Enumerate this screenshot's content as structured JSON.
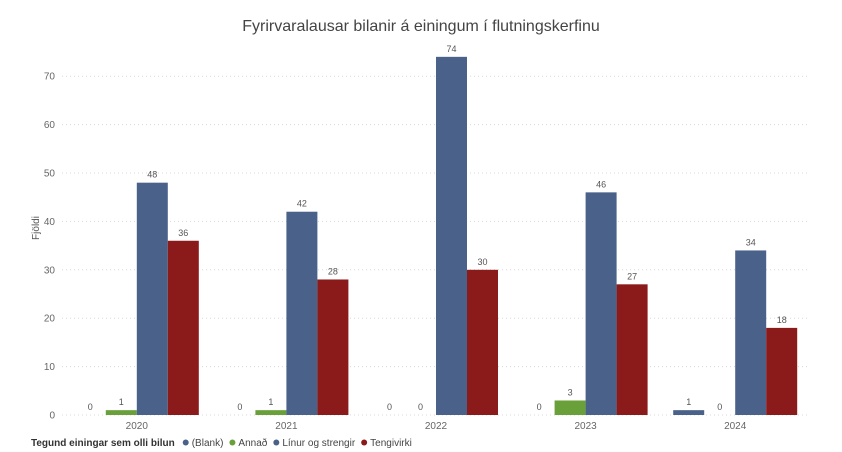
{
  "chart_data": {
    "type": "bar",
    "title": "Fyrirvaralausar bilanir á einingum í flutningskerfinu",
    "ylabel": "Fjöldi",
    "xlabel": "",
    "ylim": [
      0,
      75
    ],
    "yticks": [
      0,
      10,
      20,
      30,
      40,
      50,
      60,
      70
    ],
    "grid": true,
    "legend_position": "bottom-left",
    "legend_title": "Tegund einingar sem olli bilun",
    "categories": [
      "2020",
      "2021",
      "2022",
      "2023",
      "2024"
    ],
    "series": [
      {
        "name": "(Blank)",
        "color": "#4a6289",
        "values": [
          0,
          0,
          0,
          0,
          1
        ]
      },
      {
        "name": "Annað",
        "color": "#6aa03a",
        "values": [
          1,
          1,
          0,
          3,
          0
        ]
      },
      {
        "name": "Línur og strengir",
        "color": "#4a6289",
        "values": [
          48,
          42,
          74,
          46,
          34
        ]
      },
      {
        "name": "Tengivirki",
        "color": "#8b1a1a",
        "values": [
          36,
          28,
          30,
          27,
          18
        ]
      }
    ]
  }
}
